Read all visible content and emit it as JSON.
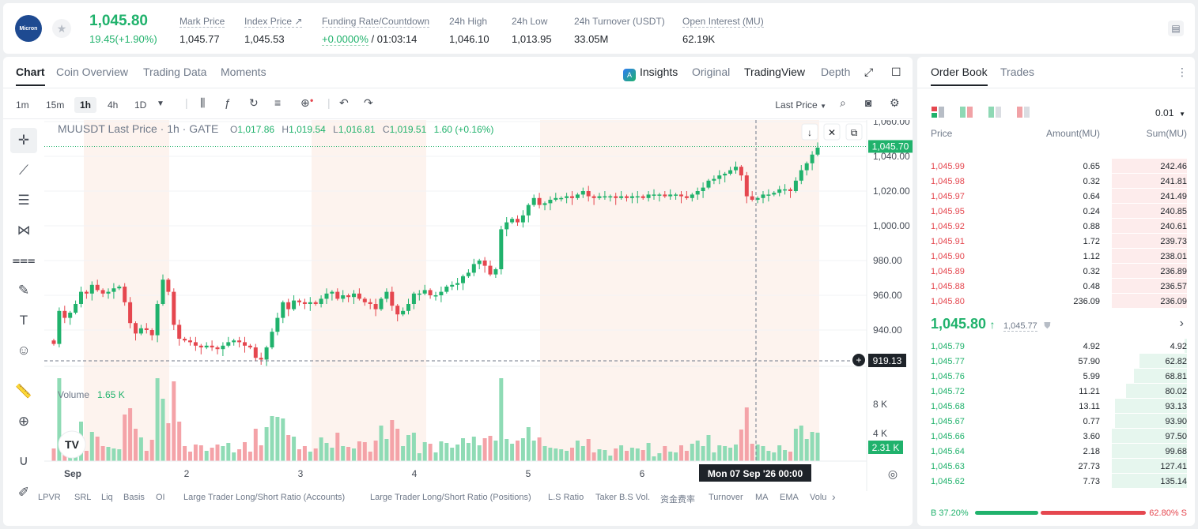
{
  "ticker": {
    "logo_text": "Micron",
    "last_price": "1,045.80",
    "change": "19.45(+1.90%)",
    "stats": [
      {
        "label": "Mark Price",
        "value": "1,045.77"
      },
      {
        "label": "Index Price ↗",
        "value": "1,045.53"
      },
      {
        "label": "Funding Rate/Countdown",
        "value": "+0.0000%",
        "value2": " / 01:03:14"
      },
      {
        "label": "24h High",
        "value": "1,046.10"
      },
      {
        "label": "24h Low",
        "value": "1,013.95"
      },
      {
        "label": "24h Turnover (USDT)",
        "value": "33.05M"
      },
      {
        "label": "Open Interest (MU)",
        "value": "62.19K"
      }
    ]
  },
  "chart_tabs": [
    "Chart",
    "Coin Overview",
    "Trading Data",
    "Moments"
  ],
  "chart_views": [
    "Insights",
    "Original",
    "TradingView",
    "Depth"
  ],
  "timeframes": [
    "1m",
    "15m",
    "1h",
    "4h",
    "1D"
  ],
  "price_source": "Last Price",
  "legend": {
    "symbol": "MUUSDT Last Price · 1h · GATE",
    "o_label": "O",
    "o": "1,017.86",
    "h_label": "H",
    "h": "1,019.54",
    "l_label": "L",
    "l": "1,016.81",
    "c_label": "C",
    "c": "1,019.51",
    "chg": "1.60 (+0.16%)"
  },
  "price_axis": [
    "1,060.00",
    "1,040.00",
    "1,020.00",
    "1,000.00",
    "980.00",
    "960.00",
    "940.00"
  ],
  "last_price_tag": "1,045.70",
  "crosshair_price_tag": "919.13",
  "volume": {
    "label": "Volume",
    "value": "1.65 K",
    "axis": [
      "8 K",
      "4 K"
    ],
    "tag": "2.31 K"
  },
  "x_axis": [
    "Sep",
    "2",
    "3",
    "4",
    "5",
    "6"
  ],
  "crosshair_time": "Mon 07 Sep '26   00:00",
  "indicators": [
    "LPVR",
    "SRL",
    "Liq",
    "Basis",
    "OI",
    "Large Trader Long/Short Ratio (Accounts)",
    "Large Trader Long/Short Ratio (Positions)",
    "L.S Ratio",
    "Taker B.S Vol.",
    "资金费率",
    "Turnover",
    "MA",
    "EMA",
    "Volu"
  ],
  "colors": {
    "up": "#20b26c",
    "down": "#e5474f",
    "up_vol": "#8fdbb5",
    "down_vol": "#f4a3a8"
  },
  "chart_data": {
    "type": "candlestick",
    "interval": "1h",
    "y_range": [
      920,
      1060
    ],
    "closes": [
      932,
      951,
      947,
      950,
      955,
      962,
      961,
      966,
      963,
      961,
      962,
      964,
      965,
      956,
      944,
      938,
      941,
      940,
      937,
      955,
      969,
      962,
      943,
      935,
      934,
      933,
      931,
      930,
      931,
      930,
      929,
      931,
      933,
      934,
      933,
      931,
      930,
      924,
      923,
      930,
      939,
      947,
      956,
      952,
      957,
      956,
      955,
      956,
      955,
      958,
      961,
      962,
      958,
      960,
      959,
      961,
      958,
      956,
      955,
      952,
      958,
      962,
      954,
      949,
      951,
      955,
      961,
      961,
      963,
      960,
      960,
      962,
      965,
      966,
      967,
      971,
      973,
      978,
      980,
      977,
      972,
      975,
      998,
      1002,
      1004,
      1002,
      1006,
      1012,
      1016,
      1012,
      1013,
      1015,
      1016,
      1016,
      1017,
      1016,
      1018,
      1020,
      1017,
      1016,
      1017,
      1017,
      1017,
      1016,
      1017,
      1016,
      1017,
      1017,
      1016,
      1018,
      1018,
      1018,
      1017,
      1018,
      1018,
      1017,
      1016,
      1018,
      1020,
      1022,
      1026,
      1027,
      1029,
      1030,
      1032,
      1034,
      1029,
      1017,
      1015,
      1016,
      1018,
      1018,
      1019,
      1021,
      1021,
      1020,
      1026,
      1032,
      1036,
      1041,
      1045
    ]
  },
  "orderbook": {
    "tabs": [
      "Order Book",
      "Trades"
    ],
    "precision": "0.01",
    "cols": [
      "Price",
      "Amount(MU)",
      "Sum(MU)"
    ],
    "asks": [
      {
        "price": "1,045.99",
        "amount": "0.65",
        "sum": "242.46",
        "depth": 0.27
      },
      {
        "price": "1,045.98",
        "amount": "0.32",
        "sum": "241.81",
        "depth": 0.27
      },
      {
        "price": "1,045.97",
        "amount": "0.64",
        "sum": "241.49",
        "depth": 0.27
      },
      {
        "price": "1,045.95",
        "amount": "0.24",
        "sum": "240.85",
        "depth": 0.27
      },
      {
        "price": "1,045.92",
        "amount": "0.88",
        "sum": "240.61",
        "depth": 0.27
      },
      {
        "price": "1,045.91",
        "amount": "1.72",
        "sum": "239.73",
        "depth": 0.27
      },
      {
        "price": "1,045.90",
        "amount": "1.12",
        "sum": "238.01",
        "depth": 0.27
      },
      {
        "price": "1,045.89",
        "amount": "0.32",
        "sum": "236.89",
        "depth": 0.27
      },
      {
        "price": "1,045.88",
        "amount": "0.48",
        "sum": "236.57",
        "depth": 0.27
      },
      {
        "price": "1,045.80",
        "amount": "236.09",
        "sum": "236.09",
        "depth": 0.27
      }
    ],
    "mid_price": "1,045.80",
    "mid_arrow": "↑",
    "mark_price": "1,045.77",
    "bids": [
      {
        "price": "1,045.79",
        "amount": "4.92",
        "sum": "4.92",
        "depth": 0.01
      },
      {
        "price": "1,045.77",
        "amount": "57.90",
        "sum": "62.82",
        "depth": 0.17
      },
      {
        "price": "1,045.76",
        "amount": "5.99",
        "sum": "68.81",
        "depth": 0.19
      },
      {
        "price": "1,045.72",
        "amount": "11.21",
        "sum": "80.02",
        "depth": 0.22
      },
      {
        "price": "1,045.68",
        "amount": "13.11",
        "sum": "93.13",
        "depth": 0.26
      },
      {
        "price": "1,045.67",
        "amount": "0.77",
        "sum": "93.90",
        "depth": 0.26
      },
      {
        "price": "1,045.66",
        "amount": "3.60",
        "sum": "97.50",
        "depth": 0.27
      },
      {
        "price": "1,045.64",
        "amount": "2.18",
        "sum": "99.68",
        "depth": 0.27
      },
      {
        "price": "1,045.63",
        "amount": "27.73",
        "sum": "127.41",
        "depth": 0.27
      },
      {
        "price": "1,045.62",
        "amount": "7.73",
        "sum": "135.14",
        "depth": 0.27
      }
    ],
    "buy_label": "B 37.20%",
    "sell_label": "62.80% S",
    "buy_pct": 37.2
  }
}
